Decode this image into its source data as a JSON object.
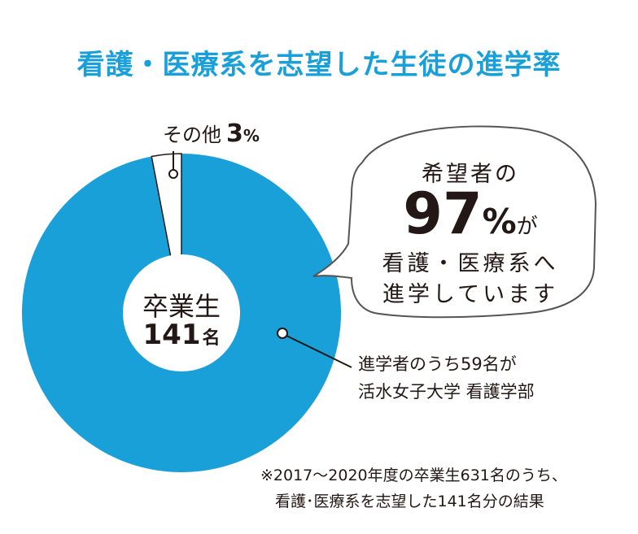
{
  "title": "看護・医療系を志望した生徒の進学率",
  "chart_data": {
    "type": "pie",
    "donut": true,
    "title": "看護・医療系を志望した生徒の進学率",
    "slices": [
      {
        "label": "看護・医療系",
        "value": 97
      },
      {
        "label": "その他",
        "value": 3,
        "display": "3",
        "unit": "%"
      }
    ],
    "center_label": "卒業生",
    "center_value": "141",
    "center_unit": "名",
    "colors": {
      "main": "#1aa0d8",
      "other": "#ffffff",
      "outline": "#231815"
    }
  },
  "bubble": {
    "line1": "希望者の",
    "percent_value": "97",
    "percent_unit": "%",
    "percent_suffix": "が",
    "line3": "看護・医療系へ",
    "line4": "進学しています"
  },
  "callout": {
    "line1": "進学者のうち59名が",
    "line2": "活水女子大学 看護学部"
  },
  "footnote": {
    "line1": "※2017〜2020年度の卒業生631名のうち、",
    "line2": "看護･医療系を志望した141名分の結果"
  }
}
